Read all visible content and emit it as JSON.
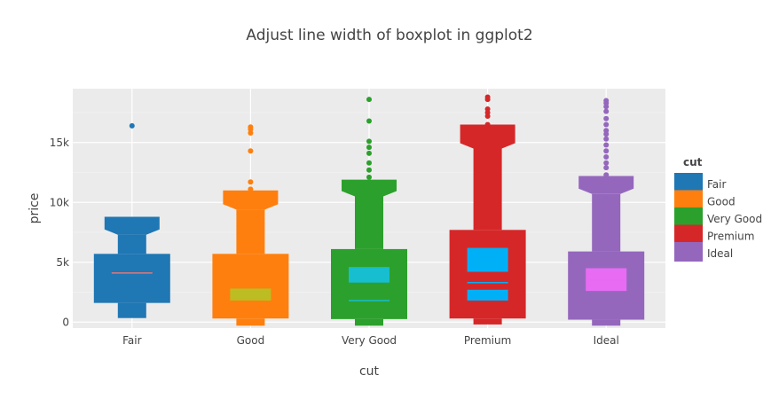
{
  "chart_data": {
    "type": "box",
    "title": "Adjust line width of boxplot in ggplot2",
    "xlabel": "cut",
    "ylabel": "price",
    "ylim": [
      -500,
      19500
    ],
    "yticks": [
      0,
      5000,
      10000,
      15000
    ],
    "ytick_labels": [
      "0",
      "5k",
      "10k",
      "15k"
    ],
    "categories": [
      "Fair",
      "Good",
      "Very Good",
      "Premium",
      "Ideal"
    ],
    "colors": [
      "#1f77b4",
      "#ff7f0e",
      "#2ca02c",
      "#d62728",
      "#9467bd"
    ],
    "inner_colors": [
      "#e377c2",
      "#bcbd22",
      "#17becf",
      "#00b0f6",
      "#e76bf3"
    ],
    "median_colors": [
      "#e37777",
      "#bcbd22",
      "#17becf",
      "#00b0f6",
      "#e76bf3"
    ],
    "series": [
      {
        "name": "Fair",
        "min": 337,
        "q1": 1600,
        "median": 4100,
        "q3": 5700,
        "max": 7300,
        "upper_fence": 8800,
        "inner": null,
        "outliers": [
          16400
        ]
      },
      {
        "name": "Good",
        "min": -300,
        "q1": 300,
        "median": 1900,
        "q3": 5700,
        "max": 9400,
        "upper_fence": 11000,
        "inner": [
          1800,
          2800
        ],
        "outliers": [
          11100,
          11700,
          14300,
          15800,
          16100,
          16300
        ]
      },
      {
        "name": "Very Good",
        "min": -300,
        "q1": 250,
        "median": 1800,
        "q3": 6100,
        "max": 10500,
        "upper_fence": 11900,
        "inner": [
          3300,
          4600
        ],
        "outliers": [
          12100,
          12700,
          13300,
          14100,
          14600,
          15100,
          16800,
          18600
        ]
      },
      {
        "name": "Premium",
        "min": -200,
        "q1": 300,
        "median": 3300,
        "q3": 7700,
        "max": 14500,
        "upper_fence": 16500,
        "inner": [
          1800,
          2700
        ],
        "inner2": [
          4200,
          6200
        ],
        "outliers": [
          16500,
          17200,
          17500,
          17800,
          18600,
          18800
        ]
      },
      {
        "name": "Ideal",
        "min": -300,
        "q1": 200,
        "median": 3500,
        "q3": 5900,
        "max": 10700,
        "upper_fence": 12200,
        "inner": [
          2600,
          4500
        ],
        "outliers": [
          12300,
          12900,
          13300,
          13800,
          14300,
          14800,
          15300,
          15700,
          16000,
          16500,
          17000,
          17600,
          18000,
          18300,
          18500
        ]
      }
    ],
    "legend": {
      "title": "cut",
      "position": "right",
      "entries": [
        "Fair",
        "Good",
        "Very Good",
        "Premium",
        "Ideal"
      ]
    },
    "grid": true,
    "background": "#ebebeb"
  }
}
